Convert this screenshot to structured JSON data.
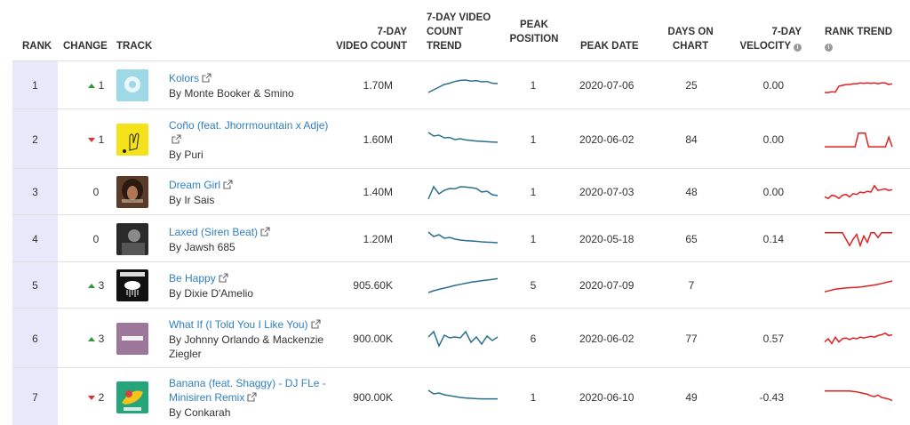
{
  "headers": {
    "rank": "RANK",
    "change": "CHANGE",
    "track": "TRACK",
    "video_count": [
      "7-DAY",
      "VIDEO COUNT"
    ],
    "video_count_trend": [
      "7-DAY VIDEO",
      "COUNT",
      "TREND"
    ],
    "peak_position": [
      "PEAK",
      "POSITION"
    ],
    "peak_date": "PEAK DATE",
    "days_on_chart": [
      "DAYS ON",
      "CHART"
    ],
    "velocity": [
      "7-DAY",
      "VELOCITY"
    ],
    "rank_trend": "RANK TREND"
  },
  "colors": {
    "link": "#2f7fc1",
    "up": "#2e9a3b",
    "down": "#e53030",
    "video_trend": "#2a6f8f",
    "rank_trend": "#e02020",
    "rank_column_bg": "#e9e8fb"
  },
  "rows": [
    {
      "rank": "1",
      "change_dir": "up",
      "change": "1",
      "title": "Kolors",
      "title_lines": [
        "Kolors"
      ],
      "artist": "By Monte Booker & Smino",
      "artist_lines": [
        "By Monte Booker & Smino"
      ],
      "video_count": "1.70M",
      "peak_position": "1",
      "peak_date": "2020-07-06",
      "days_on_chart": "25",
      "velocity": "0.00",
      "art_icon": "light-blue-circle-cover",
      "video_trend": [
        0.1,
        0.25,
        0.4,
        0.55,
        0.62,
        0.72,
        0.78,
        0.8,
        0.74,
        0.77,
        0.7,
        0.72,
        0.62,
        0.6
      ],
      "rank_trend": [
        0.05,
        0.05,
        0.1,
        0.08,
        0.45,
        0.5,
        0.55,
        0.55,
        0.6,
        0.6,
        0.65,
        0.62,
        0.65,
        0.62,
        0.65,
        0.6,
        0.65,
        0.65,
        0.55,
        0.6
      ]
    },
    {
      "rank": "2",
      "change_dir": "down",
      "change": "1",
      "title": "Coño (feat. Jhorrmountain x Adje)",
      "title_lines": [
        "Coño (feat. Jhorrmountain x Adje)"
      ],
      "artist": "By Puri",
      "artist_lines": [
        "By Puri"
      ],
      "video_count": "1.60M",
      "peak_position": "1",
      "peak_date": "2020-06-02",
      "days_on_chart": "84",
      "velocity": "0.00",
      "art_icon": "yellow-hand-cover",
      "video_trend": [
        0.9,
        0.7,
        0.75,
        0.6,
        0.62,
        0.5,
        0.55,
        0.48,
        0.45,
        0.42,
        0.4,
        0.38,
        0.36,
        0.35
      ],
      "rank_trend": [
        0.05,
        0.05,
        0.05,
        0.05,
        0.05,
        0.05,
        0.05,
        0.05,
        0.05,
        0.05,
        0.9,
        0.9,
        0.9,
        0.05,
        0.05,
        0.05,
        0.05,
        0.05,
        0.05,
        0.65,
        0.05
      ]
    },
    {
      "rank": "3",
      "change_dir": "none",
      "change": "0",
      "title": "Dream Girl",
      "title_lines": [
        "Dream Girl"
      ],
      "artist": "By Ir Sais",
      "artist_lines": [
        "By Ir Sais"
      ],
      "video_count": "1.40M",
      "peak_position": "1",
      "peak_date": "2020-07-03",
      "days_on_chart": "48",
      "velocity": "0.00",
      "art_icon": "portrait-cover",
      "video_trend": [
        0.1,
        0.8,
        0.4,
        0.6,
        0.7,
        0.68,
        0.8,
        0.78,
        0.75,
        0.7,
        0.5,
        0.55,
        0.35,
        0.3
      ],
      "rank_trend": [
        0.2,
        0.1,
        0.3,
        0.25,
        0.1,
        0.3,
        0.35,
        0.2,
        0.4,
        0.35,
        0.5,
        0.45,
        0.55,
        0.5,
        0.9,
        0.6,
        0.65,
        0.7,
        0.6,
        0.65
      ]
    },
    {
      "rank": "4",
      "change_dir": "none",
      "change": "0",
      "title": "Laxed (Siren Beat)",
      "title_lines": [
        "Laxed (Siren Beat)"
      ],
      "artist": "By Jawsh 685",
      "artist_lines": [
        "By Jawsh 685"
      ],
      "video_count": "1.20M",
      "peak_position": "1",
      "peak_date": "2020-05-18",
      "days_on_chart": "65",
      "velocity": "0.14",
      "art_icon": "bw-photo-cover",
      "video_trend": [
        0.9,
        0.65,
        0.75,
        0.55,
        0.6,
        0.5,
        0.45,
        0.42,
        0.4,
        0.38,
        0.35,
        0.33,
        0.32,
        0.3
      ],
      "rank_trend": [
        0.9,
        0.9,
        0.9,
        0.9,
        0.9,
        0.9,
        0.5,
        0.1,
        0.5,
        0.8,
        0.1,
        0.7,
        0.3,
        0.9,
        0.9,
        0.6,
        0.9,
        0.9,
        0.9,
        0.9
      ]
    },
    {
      "rank": "5",
      "change_dir": "up",
      "change": "3",
      "title": "Be Happy",
      "title_lines": [
        "Be Happy"
      ],
      "artist": "By Dixie D'Amelio",
      "artist_lines": [
        "By Dixie D'Amelio"
      ],
      "video_count": "905.60K",
      "peak_position": "5",
      "peak_date": "2020-07-09",
      "days_on_chart": "7",
      "velocity": "",
      "art_icon": "black-cloud-cover",
      "video_trend": [
        0.1,
        0.2,
        0.28,
        0.35,
        0.42,
        0.5,
        0.56,
        0.62,
        0.68,
        0.72,
        0.76,
        0.8,
        0.84,
        0.88
      ],
      "rank_trend": [
        0.1,
        0.18,
        0.26,
        0.3,
        0.34,
        0.36,
        0.38,
        0.4,
        0.45,
        0.5,
        0.55,
        0.62,
        0.7,
        0.78
      ]
    },
    {
      "rank": "6",
      "change_dir": "up",
      "change": "3",
      "title": "What If (I Told You I Like You)",
      "title_lines": [
        "What If (I Told You I Like You)"
      ],
      "artist": "By Johnny Orlando & Mackenzie Ziegler",
      "artist_lines": [
        "By Johnny Orlando & Mackenzie",
        "Ziegler"
      ],
      "video_count": "900.00K",
      "peak_position": "6",
      "peak_date": "2020-06-02",
      "days_on_chart": "77",
      "velocity": "0.57",
      "art_icon": "purple-what-if-cover",
      "video_trend": [
        0.6,
        0.9,
        0.1,
        0.7,
        0.55,
        0.6,
        0.55,
        0.9,
        0.3,
        0.6,
        0.2,
        0.65,
        0.4,
        0.6
      ],
      "rank_trend": [
        0.3,
        0.5,
        0.2,
        0.6,
        0.3,
        0.5,
        0.55,
        0.45,
        0.55,
        0.5,
        0.6,
        0.55,
        0.6,
        0.65,
        0.6,
        0.7,
        0.75,
        0.85,
        0.7,
        0.75
      ]
    },
    {
      "rank": "7",
      "change_dir": "down",
      "change": "2",
      "title": "Banana (feat. Shaggy) - DJ FLe - Minisiren Remix",
      "title_lines": [
        "Banana (feat. Shaggy) - DJ FLe -",
        "Minisiren Remix"
      ],
      "artist": "By Conkarah",
      "artist_lines": [
        "By Conkarah"
      ],
      "video_count": "900.00K",
      "peak_position": "1",
      "peak_date": "2020-06-10",
      "days_on_chart": "49",
      "velocity": "-0.43",
      "art_icon": "banana-cover",
      "video_trend": [
        0.9,
        0.7,
        0.75,
        0.65,
        0.6,
        0.55,
        0.5,
        0.47,
        0.45,
        0.43,
        0.42,
        0.42,
        0.42,
        0.42
      ],
      "rank_trend": [
        0.9,
        0.9,
        0.9,
        0.9,
        0.9,
        0.9,
        0.9,
        0.9,
        0.88,
        0.85,
        0.8,
        0.75,
        0.7,
        0.6,
        0.55,
        0.65,
        0.5,
        0.45,
        0.4,
        0.3
      ]
    }
  ]
}
